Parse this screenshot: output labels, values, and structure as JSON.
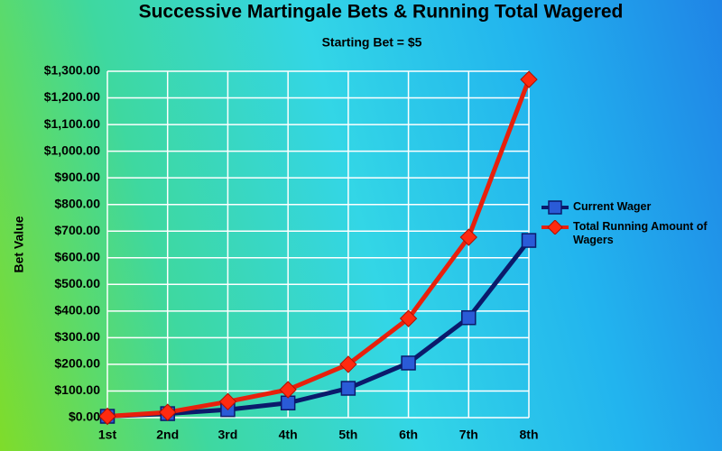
{
  "chart_data": {
    "type": "line",
    "title": "Successive Martingale Bets & Running Total Wagered",
    "subtitle": "Starting Bet = $5",
    "y_label": "Bet Value",
    "categories": [
      "1st",
      "2nd",
      "3rd",
      "4th",
      "5th",
      "6th",
      "7th",
      "8th"
    ],
    "series": [
      {
        "name": "Current Wager",
        "color": "#2a5bd7",
        "line_color": "#0b1a6b",
        "marker": "square",
        "values": [
          5,
          15,
          30,
          55,
          110,
          205,
          375,
          665
        ]
      },
      {
        "name": "Total Running Amount of Wagers",
        "color": "#ff2a10",
        "line_color": "#e8200c",
        "marker": "diamond",
        "values": [
          5,
          20,
          60,
          105,
          200,
          372,
          677,
          1269
        ]
      }
    ],
    "ylim": [
      0,
      1300
    ],
    "yticks": [
      {
        "value": 0,
        "label": "$0.00"
      },
      {
        "value": 100,
        "label": "$100.00"
      },
      {
        "value": 200,
        "label": "$200.00"
      },
      {
        "value": 300,
        "label": "$300.00"
      },
      {
        "value": 400,
        "label": "$400.00"
      },
      {
        "value": 500,
        "label": "$500.00"
      },
      {
        "value": 600,
        "label": "$600.00"
      },
      {
        "value": 700,
        "label": "$700.00"
      },
      {
        "value": 800,
        "label": "$800.00"
      },
      {
        "value": 900,
        "label": "$900.00"
      },
      {
        "value": 1000,
        "label": "$1,000.00"
      },
      {
        "value": 1100,
        "label": "$1,100.00"
      },
      {
        "value": 1200,
        "label": "$1,200.00"
      },
      {
        "value": 1300,
        "label": "$1,300.00"
      }
    ],
    "grid": true
  }
}
